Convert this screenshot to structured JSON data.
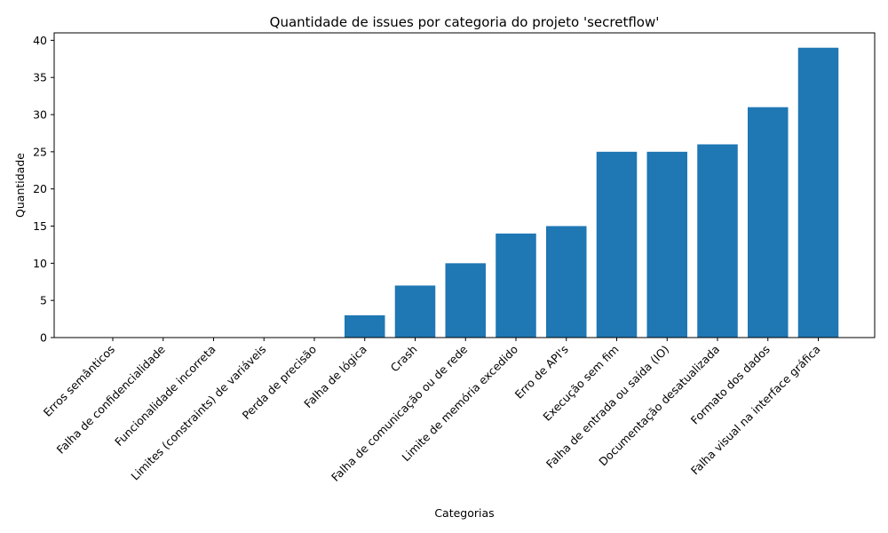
{
  "chart_data": {
    "type": "bar",
    "title": "Quantidade de issues por categoria do projeto 'secretflow'",
    "xlabel": "Categorias",
    "ylabel": "Quantidade",
    "categories": [
      "Erros semânticos",
      "Falha de confidencialidade",
      "Funcionalidade incorreta",
      "Limites (constraints) de variáveis",
      "Perda de precisão",
      "Falha de lógica",
      "Crash",
      "Falha de comunicação ou de rede",
      "Limite de memória excedido",
      "Erro de API's",
      "Execução sem fim",
      "Falha de entrada ou saída (IO)",
      "Documentação desatualizada",
      "Formato dos dados",
      "Falha visual na interface gráfica"
    ],
    "values": [
      0,
      0,
      0,
      0,
      0,
      3,
      7,
      10,
      14,
      15,
      25,
      25,
      26,
      31,
      39
    ],
    "ylim": [
      0,
      41
    ],
    "yticks": [
      0,
      5,
      10,
      15,
      20,
      25,
      30,
      35,
      40
    ],
    "grid": false,
    "bar_color": "#1f77b4"
  }
}
